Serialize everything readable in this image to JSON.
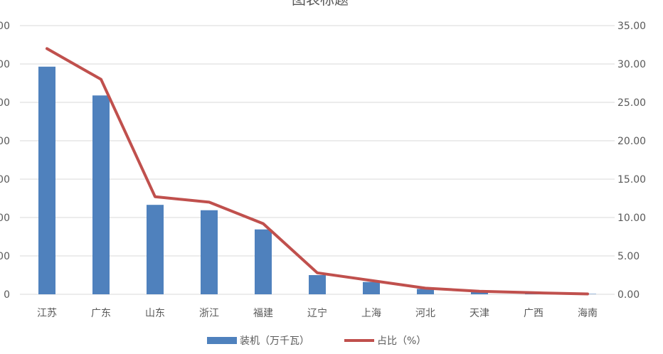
{
  "chart_data": {
    "type": "bar",
    "title": "图表标题",
    "categories": [
      "江苏",
      "广东",
      "山东",
      "浙江",
      "福建",
      "辽宁",
      "上海",
      "河北",
      "天津",
      "广西",
      "海南"
    ],
    "series": [
      {
        "name": "装机（万千瓦）",
        "type": "bar",
        "axis": "left",
        "values": [
          593,
          518,
          233,
          219,
          169,
          50,
          32,
          14,
          6,
          4,
          1
        ],
        "color": "#4F81BD"
      },
      {
        "name": "占比（%）",
        "type": "line",
        "axis": "right",
        "values": [
          32.0,
          28.0,
          12.7,
          12.0,
          9.2,
          2.8,
          1.8,
          0.8,
          0.4,
          0.2,
          0.05
        ],
        "color": "#C0504D"
      }
    ],
    "y_left": {
      "min": 0,
      "max": 700,
      "step": 100
    },
    "y_right": {
      "min": 0,
      "max": 35,
      "step": 5,
      "tick_labels": [
        "0.00",
        "5.00",
        "10.00",
        "15.00",
        "20.00",
        "25.00",
        "30.00",
        "35.00"
      ]
    },
    "grid": true,
    "legend": "bottom",
    "colors": {
      "grid": "#D9D9D9",
      "text": "#595959"
    }
  }
}
